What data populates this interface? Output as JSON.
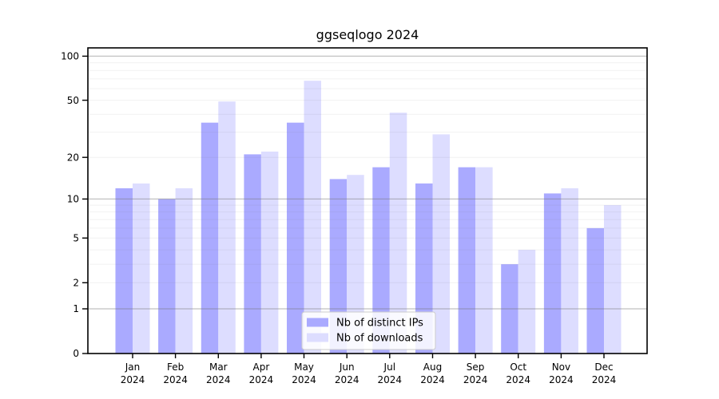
{
  "window": {
    "background": "#ffffff"
  },
  "chart_data": {
    "type": "bar",
    "title": "ggseqlogo 2024",
    "categories": [
      "Jan",
      "Feb",
      "Mar",
      "Apr",
      "May",
      "Jun",
      "Jul",
      "Aug",
      "Sep",
      "Oct",
      "Nov",
      "Dec"
    ],
    "category_year": "2024",
    "series": [
      {
        "name": "Nb of distinct IPs",
        "color": "#aaaaff",
        "values": [
          12,
          10,
          35,
          21,
          35,
          14,
          17,
          13,
          17,
          3,
          11,
          6
        ]
      },
      {
        "name": "Nb of downloads",
        "color": "#ddddff",
        "values": [
          13,
          12,
          49,
          22,
          68,
          15,
          41,
          29,
          17,
          4,
          12,
          9
        ]
      }
    ],
    "xlabel": "",
    "ylabel": "",
    "yscale": "log1p",
    "ylim": [
      0,
      113
    ],
    "y_ticks": [
      0,
      1,
      2,
      5,
      10,
      20,
      50,
      100
    ],
    "y_major_gridlines": [
      1,
      10,
      100
    ],
    "y_minor_gridlines": [
      2,
      3,
      4,
      5,
      6,
      7,
      8,
      9,
      20,
      30,
      40,
      50,
      60,
      70,
      80,
      90
    ],
    "grid": true,
    "legend_position": "bottom-center",
    "axis_color": "#000000",
    "major_grid_color": "#787878",
    "minor_grid_color": "#787878"
  }
}
